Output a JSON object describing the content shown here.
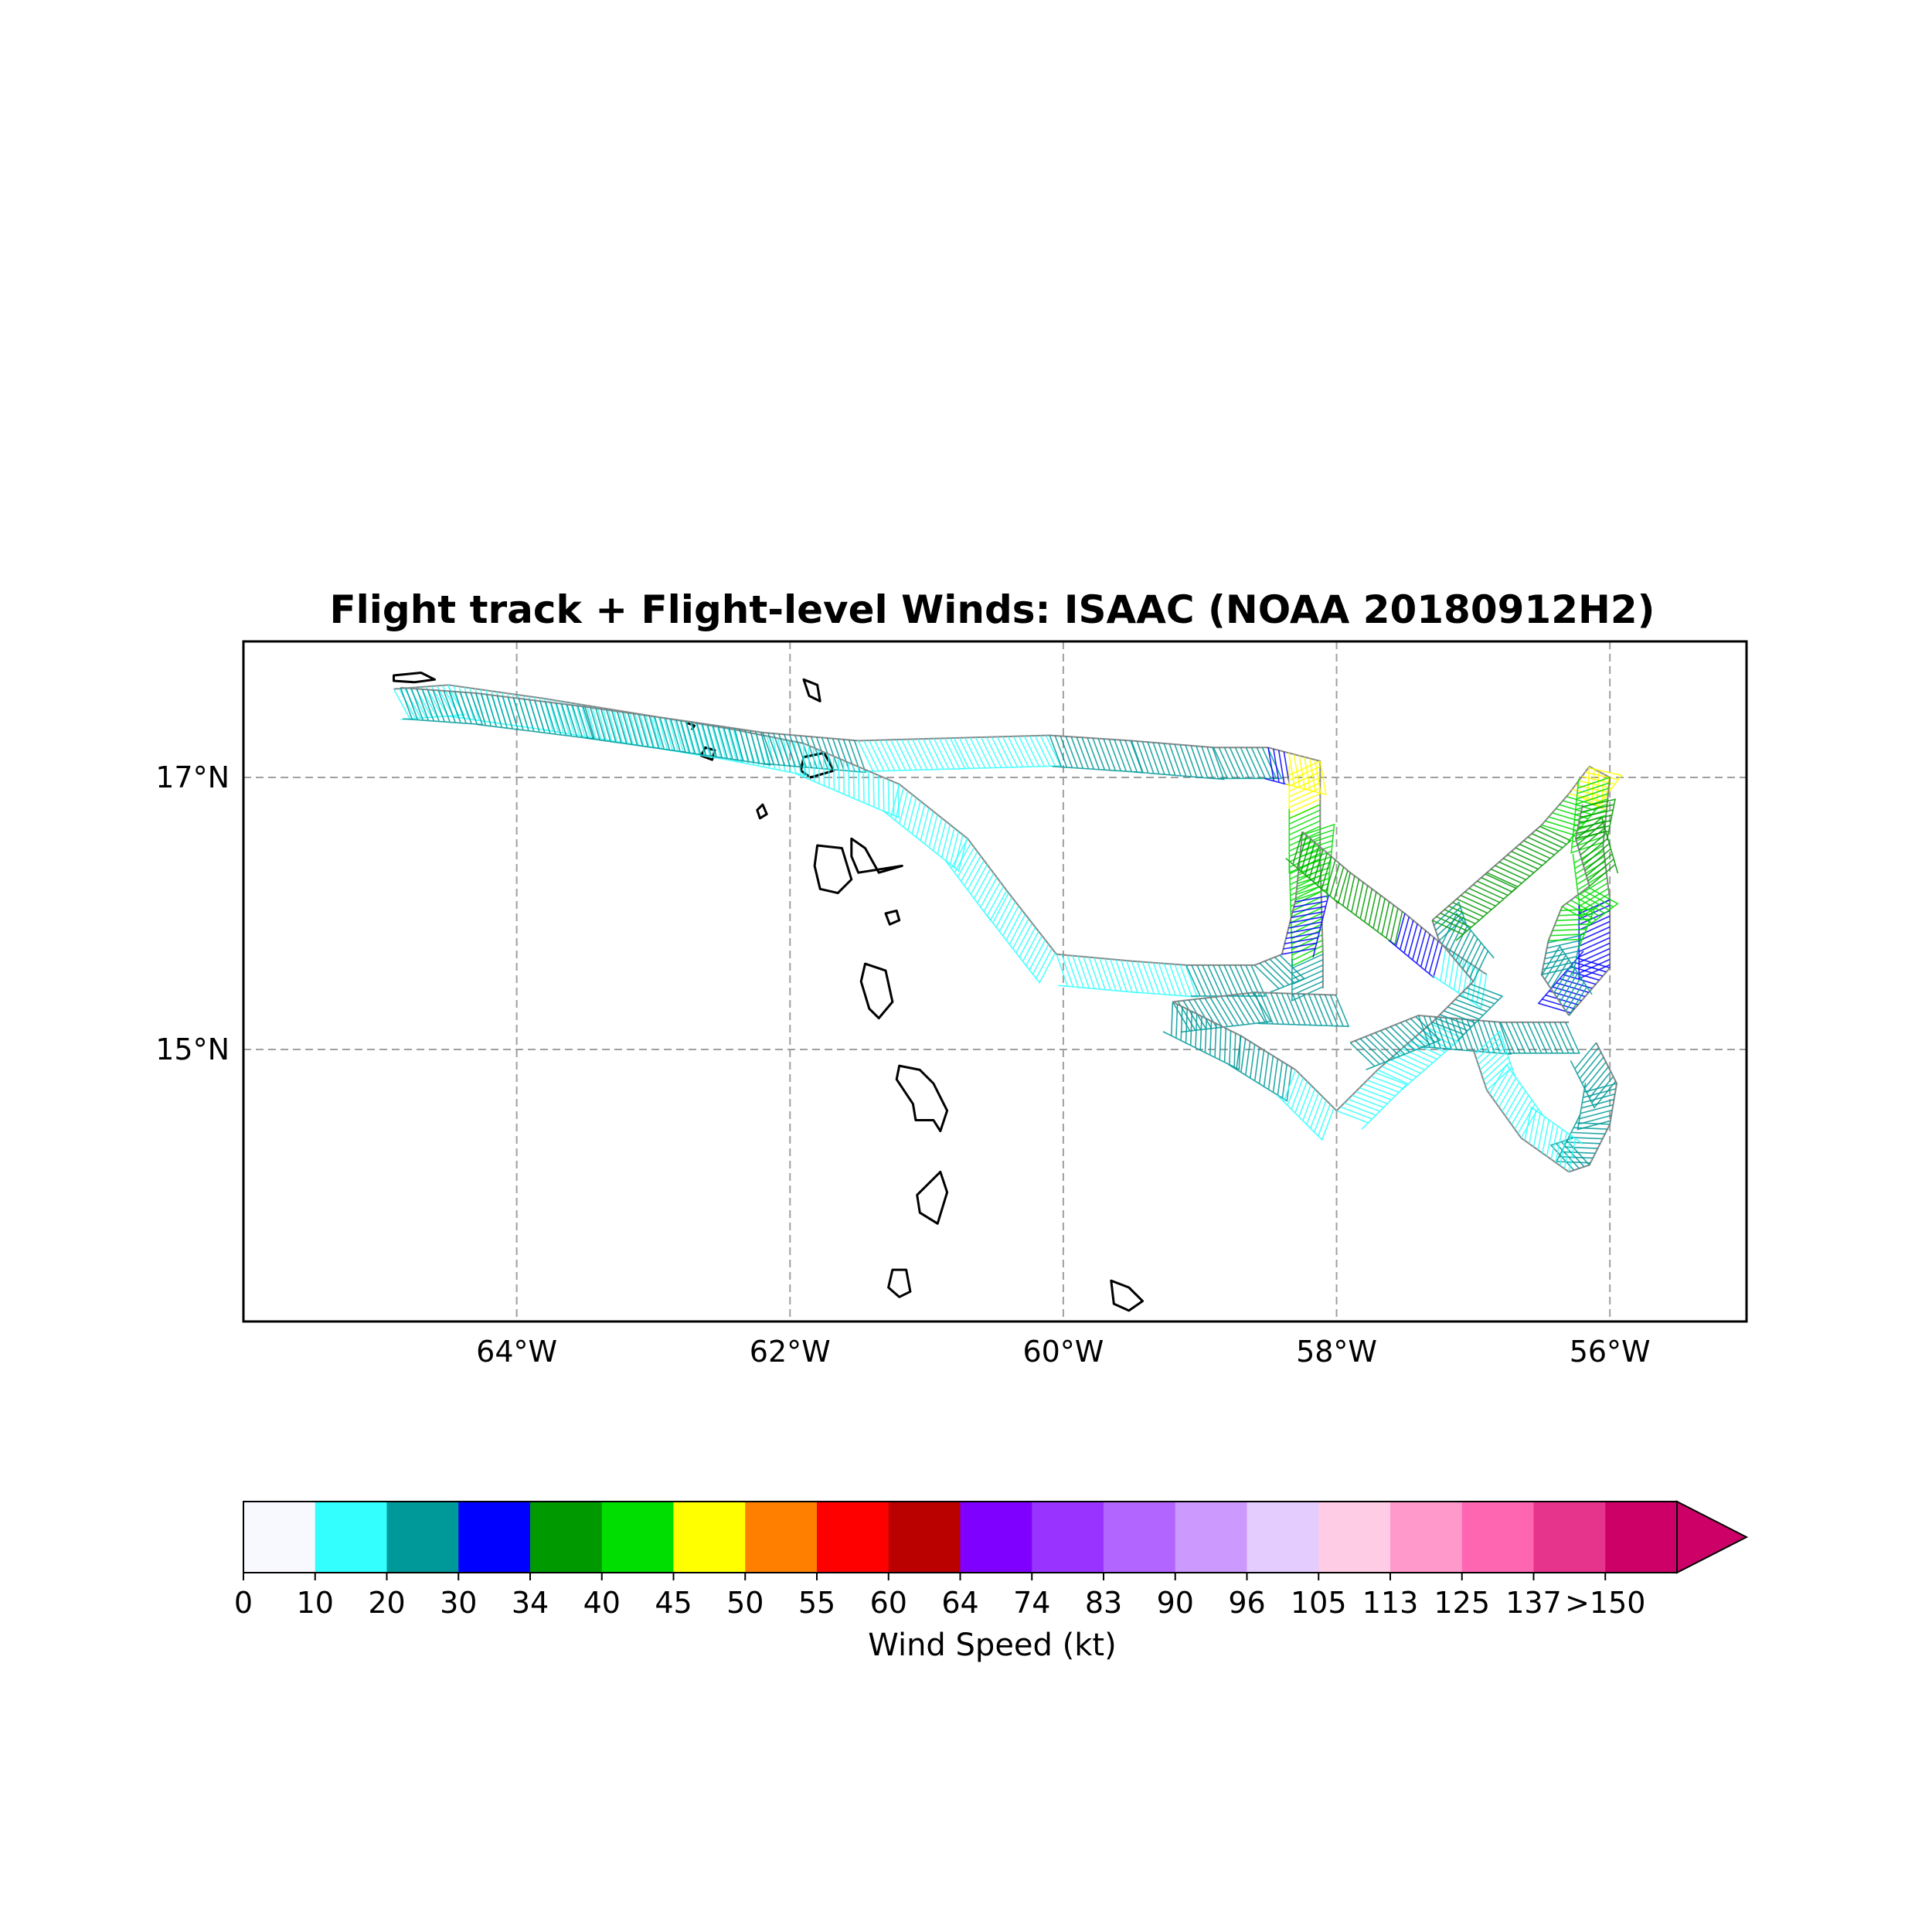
{
  "title": "Flight track + Flight-level Winds: ISAAC (NOAA 20180912H2)",
  "map": {
    "lon_range": [
      -66.0,
      -55.0
    ],
    "lat_range": [
      13.0,
      18.0
    ],
    "lon_ticks": [
      {
        "value": -64,
        "label": "64°W"
      },
      {
        "value": -62,
        "label": "62°W"
      },
      {
        "value": -60,
        "label": "60°W"
      },
      {
        "value": -58,
        "label": "58°W"
      },
      {
        "value": -56,
        "label": "56°W"
      }
    ],
    "lat_ticks": [
      {
        "value": 17,
        "label": "17°N"
      },
      {
        "value": 15,
        "label": "15°N"
      }
    ],
    "grid": true,
    "grid_color": "#a0a0a0"
  },
  "islands": [
    [
      [
        -64.9,
        17.75
      ],
      [
        -64.7,
        17.77
      ],
      [
        -64.6,
        17.72
      ],
      [
        -64.75,
        17.7
      ],
      [
        -64.9,
        17.71
      ]
    ],
    [
      [
        -62.75,
        17.4
      ],
      [
        -62.7,
        17.38
      ],
      [
        -62.72,
        17.35
      ]
    ],
    [
      [
        -62.62,
        17.22
      ],
      [
        -62.55,
        17.2
      ],
      [
        -62.57,
        17.13
      ],
      [
        -62.65,
        17.16
      ]
    ],
    [
      [
        -61.9,
        17.72
      ],
      [
        -61.8,
        17.68
      ],
      [
        -61.78,
        17.56
      ],
      [
        -61.86,
        17.6
      ]
    ],
    [
      [
        -61.9,
        17.15
      ],
      [
        -61.75,
        17.18
      ],
      [
        -61.68,
        17.05
      ],
      [
        -61.85,
        17.0
      ],
      [
        -61.92,
        17.05
      ]
    ],
    [
      [
        -62.2,
        16.8
      ],
      [
        -62.17,
        16.73
      ],
      [
        -62.22,
        16.7
      ],
      [
        -62.24,
        16.76
      ]
    ],
    [
      [
        -61.8,
        16.5
      ],
      [
        -61.62,
        16.48
      ],
      [
        -61.55,
        16.25
      ],
      [
        -61.65,
        16.15
      ],
      [
        -61.78,
        16.18
      ],
      [
        -61.82,
        16.35
      ]
    ],
    [
      [
        -61.55,
        16.55
      ],
      [
        -61.45,
        16.48
      ],
      [
        -61.35,
        16.3
      ],
      [
        -61.18,
        16.35
      ],
      [
        -61.5,
        16.3
      ],
      [
        -61.55,
        16.42
      ]
    ],
    [
      [
        -61.3,
        16.0
      ],
      [
        -61.22,
        16.02
      ],
      [
        -61.2,
        15.95
      ],
      [
        -61.27,
        15.92
      ]
    ],
    [
      [
        -61.45,
        15.63
      ],
      [
        -61.3,
        15.58
      ],
      [
        -61.25,
        15.35
      ],
      [
        -61.35,
        15.23
      ],
      [
        -61.42,
        15.3
      ],
      [
        -61.48,
        15.5
      ]
    ],
    [
      [
        -61.2,
        14.88
      ],
      [
        -61.05,
        14.85
      ],
      [
        -60.95,
        14.75
      ],
      [
        -60.85,
        14.55
      ],
      [
        -60.9,
        14.4
      ],
      [
        -60.95,
        14.48
      ],
      [
        -61.08,
        14.48
      ],
      [
        -61.1,
        14.6
      ],
      [
        -61.22,
        14.78
      ]
    ],
    [
      [
        -60.9,
        14.1
      ],
      [
        -60.85,
        13.95
      ],
      [
        -60.92,
        13.72
      ],
      [
        -61.05,
        13.8
      ],
      [
        -61.07,
        13.93
      ]
    ],
    [
      [
        -61.25,
        13.38
      ],
      [
        -61.15,
        13.38
      ],
      [
        -61.12,
        13.22
      ],
      [
        -61.2,
        13.18
      ],
      [
        -61.28,
        13.25
      ]
    ],
    [
      [
        -59.65,
        13.3
      ],
      [
        -59.52,
        13.25
      ],
      [
        -59.42,
        13.15
      ],
      [
        -59.52,
        13.08
      ],
      [
        -59.63,
        13.13
      ]
    ]
  ],
  "flight_segments": [
    {
      "c": "#33ffff",
      "p": [
        [
          -64.9,
          17.65
        ],
        [
          -64.5,
          17.68
        ],
        [
          -63.8,
          17.58
        ],
        [
          -63.0,
          17.45
        ],
        [
          -62.4,
          17.35
        ],
        [
          -61.9,
          17.25
        ]
      ]
    },
    {
      "c": "#009999",
      "p": [
        [
          -64.85,
          17.66
        ],
        [
          -64.3,
          17.62
        ],
        [
          -63.5,
          17.52
        ],
        [
          -62.8,
          17.42
        ],
        [
          -62.2,
          17.33
        ],
        [
          -61.5,
          17.27
        ]
      ]
    },
    {
      "c": "#33ffff",
      "p": [
        [
          -61.5,
          17.27
        ],
        [
          -60.8,
          17.29
        ],
        [
          -60.1,
          17.31
        ]
      ]
    },
    {
      "c": "#009999",
      "p": [
        [
          -60.1,
          17.31
        ],
        [
          -59.5,
          17.27
        ],
        [
          -58.9,
          17.22
        ],
        [
          -58.5,
          17.22
        ]
      ]
    },
    {
      "c": "#0000ff",
      "p": [
        [
          -58.5,
          17.22
        ],
        [
          -58.35,
          17.18
        ]
      ]
    },
    {
      "c": "#ffff00",
      "p": [
        [
          -58.35,
          17.18
        ],
        [
          -58.12,
          17.12
        ],
        [
          -58.12,
          16.8
        ]
      ]
    },
    {
      "c": "#00dd00",
      "p": [
        [
          -58.12,
          16.8
        ],
        [
          -58.12,
          16.4
        ],
        [
          -58.1,
          15.7
        ]
      ]
    },
    {
      "c": "#009999",
      "p": [
        [
          -58.1,
          15.7
        ],
        [
          -58.1,
          15.45
        ]
      ]
    },
    {
      "c": "#33ffff",
      "p": [
        [
          -61.9,
          17.25
        ],
        [
          -61.2,
          16.95
        ],
        [
          -60.7,
          16.55
        ],
        [
          -60.4,
          16.15
        ],
        [
          -60.05,
          15.7
        ]
      ]
    },
    {
      "c": "#33ffff",
      "p": [
        [
          -60.05,
          15.7
        ],
        [
          -59.5,
          15.65
        ],
        [
          -59.1,
          15.62
        ]
      ]
    },
    {
      "c": "#009999",
      "p": [
        [
          -59.1,
          15.62
        ],
        [
          -58.6,
          15.62
        ],
        [
          -58.4,
          15.7
        ]
      ]
    },
    {
      "c": "#0000ff",
      "p": [
        [
          -58.4,
          15.7
        ],
        [
          -58.3,
          16.1
        ]
      ]
    },
    {
      "c": "#00dd00",
      "p": [
        [
          -58.3,
          16.1
        ],
        [
          -58.25,
          16.6
        ]
      ]
    },
    {
      "c": "#009900",
      "p": [
        [
          -58.25,
          16.6
        ],
        [
          -57.9,
          16.3
        ],
        [
          -57.5,
          16.0
        ]
      ]
    },
    {
      "c": "#0000ff",
      "p": [
        [
          -57.5,
          16.0
        ],
        [
          -57.2,
          15.75
        ]
      ]
    },
    {
      "c": "#33ffff",
      "p": [
        [
          -57.2,
          15.75
        ],
        [
          -56.9,
          15.55
        ]
      ]
    },
    {
      "c": "#009999",
      "p": [
        [
          -59.2,
          15.35
        ],
        [
          -58.6,
          15.42
        ],
        [
          -58.0,
          15.4
        ]
      ]
    },
    {
      "c": "#009999",
      "p": [
        [
          -59.2,
          15.35
        ],
        [
          -58.7,
          15.1
        ],
        [
          -58.3,
          14.85
        ]
      ]
    },
    {
      "c": "#33ffff",
      "p": [
        [
          -58.3,
          14.85
        ],
        [
          -58.0,
          14.55
        ],
        [
          -57.7,
          14.85
        ],
        [
          -57.3,
          15.2
        ]
      ]
    },
    {
      "c": "#009999",
      "p": [
        [
          -57.9,
          15.05
        ],
        [
          -57.4,
          15.25
        ],
        [
          -56.8,
          15.2
        ],
        [
          -56.3,
          15.2
        ]
      ]
    },
    {
      "c": "#009999",
      "p": [
        [
          -57.3,
          15.2
        ],
        [
          -57.0,
          15.5
        ],
        [
          -57.25,
          15.8
        ],
        [
          -57.3,
          15.95
        ]
      ]
    },
    {
      "c": "#009900",
      "p": [
        [
          -57.3,
          15.95
        ],
        [
          -56.9,
          16.3
        ],
        [
          -56.5,
          16.65
        ]
      ]
    },
    {
      "c": "#00dd00",
      "p": [
        [
          -56.5,
          16.65
        ],
        [
          -56.3,
          16.88
        ]
      ]
    },
    {
      "c": "#ffff00",
      "p": [
        [
          -56.3,
          16.88
        ],
        [
          -56.15,
          17.08
        ],
        [
          -56.0,
          17.0
        ]
      ]
    },
    {
      "c": "#00dd00",
      "p": [
        [
          -56.0,
          17.0
        ],
        [
          -56.05,
          16.5
        ],
        [
          -56.0,
          16.1
        ]
      ]
    },
    {
      "c": "#0000ff",
      "p": [
        [
          -56.0,
          16.1
        ],
        [
          -56.0,
          15.6
        ],
        [
          -56.3,
          15.25
        ]
      ]
    },
    {
      "c": "#009999",
      "p": [
        [
          -56.3,
          15.25
        ],
        [
          -56.5,
          15.55
        ],
        [
          -56.45,
          15.8
        ]
      ]
    },
    {
      "c": "#00dd00",
      "p": [
        [
          -56.45,
          15.8
        ],
        [
          -56.35,
          16.05
        ],
        [
          -56.15,
          16.2
        ]
      ]
    },
    {
      "c": "#009900",
      "p": [
        [
          -56.15,
          16.2
        ],
        [
          -56.25,
          16.55
        ],
        [
          -56.2,
          16.8
        ]
      ]
    },
    {
      "c": "#009999",
      "p": [
        [
          -56.1,
          15.05
        ],
        [
          -55.95,
          14.75
        ],
        [
          -56.0,
          14.45
        ],
        [
          -56.15,
          14.15
        ],
        [
          -56.3,
          14.1
        ]
      ]
    },
    {
      "c": "#33ffff",
      "p": [
        [
          -56.3,
          14.1
        ],
        [
          -56.65,
          14.35
        ],
        [
          -56.9,
          14.7
        ],
        [
          -57.0,
          15.0
        ]
      ]
    }
  ],
  "colorbar": {
    "label": "Wind Speed (kt)",
    "tick_labels": [
      "0",
      "10",
      "20",
      "30",
      "34",
      "40",
      "45",
      "50",
      "55",
      "60",
      "64",
      "74",
      "83",
      "90",
      "96",
      "105",
      "113",
      "125",
      "137",
      ">150"
    ],
    "colors": [
      "#f8f8ff",
      "#33ffff",
      "#009999",
      "#0000ff",
      "#009900",
      "#00dd00",
      "#ffff00",
      "#ff8000",
      "#ff0000",
      "#bb0000",
      "#8000ff",
      "#9933ff",
      "#b266ff",
      "#cc99ff",
      "#e5ccff",
      "#ffcce6",
      "#ff99cc",
      "#ff66b2",
      "#e6338c",
      "#cc0066"
    ],
    "extend_color": "#cc0066"
  }
}
